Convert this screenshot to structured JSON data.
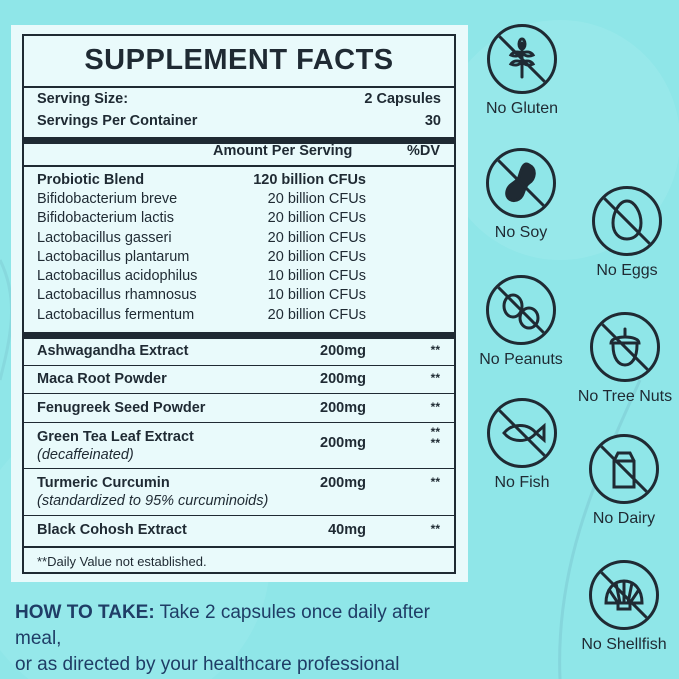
{
  "facts": {
    "title": "SUPPLEMENT FACTS",
    "serving_size_label": "Serving Size:",
    "serving_size_value": "2 Capsules",
    "servings_label": "Servings Per Container",
    "servings_value": "30",
    "amount_header": "Amount Per Serving",
    "dv_header": "%DV",
    "blend": {
      "name": "Probiotic Blend",
      "amount": "120 billion CFUs",
      "strains": [
        {
          "name": "Bifidobacterium breve",
          "amount": "20 billion CFUs"
        },
        {
          "name": "Bifidobacterium lactis",
          "amount": "20 billion CFUs"
        },
        {
          "name": "Lactobacillus gasseri",
          "amount": "20 billion CFUs"
        },
        {
          "name": "Lactobacillus plantarum",
          "amount": "20 billion CFUs"
        },
        {
          "name": "Lactobacillus acidophilus",
          "amount": "10 billion CFUs"
        },
        {
          "name": "Lactobacillus rhamnosus",
          "amount": "10 billion CFUs"
        },
        {
          "name": "Lactobacillus fermentum",
          "amount": "20 billion CFUs"
        }
      ]
    },
    "ingredients": [
      {
        "name": "Ashwagandha Extract",
        "amount": "200mg",
        "dv": "**"
      },
      {
        "name": "Maca Root Powder",
        "amount": "200mg",
        "dv": "**"
      },
      {
        "name": "Fenugreek Seed Powder",
        "amount": "200mg",
        "dv": "**"
      },
      {
        "name": "Green Tea Leaf Extract",
        "note": "(decaffeinated)",
        "amount": "200mg",
        "dv": "**",
        "dv2": "**"
      },
      {
        "name": "Turmeric Curcumin",
        "note": "(standardized to 95% curcuminoids)",
        "amount": "200mg",
        "dv": "**"
      },
      {
        "name": "Black Cohosh Extract",
        "amount": "40mg",
        "dv": "**"
      }
    ],
    "footnote": "**Daily Value not established."
  },
  "howto": {
    "label": "HOW TO TAKE:",
    "line1": " Take 2 capsules once daily after meal,",
    "line2": "or as directed by your healthcare professional"
  },
  "badges": {
    "gluten": {
      "label": "No Gluten",
      "icon": "wheat-icon"
    },
    "soy": {
      "label": "No Soy",
      "icon": "soybean-icon"
    },
    "eggs": {
      "label": "No Eggs",
      "icon": "egg-icon"
    },
    "peanuts": {
      "label": "No Peanuts",
      "icon": "peanut-icon"
    },
    "treenuts": {
      "label": "No Tree Nuts",
      "icon": "acorn-icon"
    },
    "fish": {
      "label": "No Fish",
      "icon": "fish-icon"
    },
    "dairy": {
      "label": "No Dairy",
      "icon": "milk-carton-icon"
    },
    "shellfish": {
      "label": "No Shellfish",
      "icon": "shell-icon"
    }
  },
  "colors": {
    "background": "#8fe6e8",
    "panel": "#e9fafb",
    "ink": "#1f2a33",
    "howto_text": "#1f3d66"
  }
}
